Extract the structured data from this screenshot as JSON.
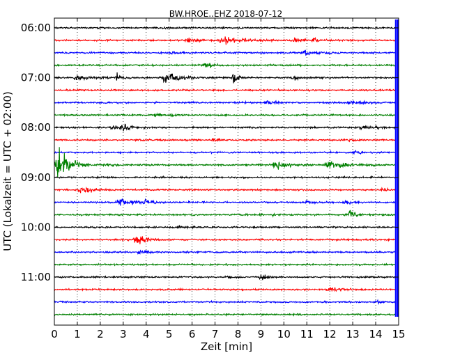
{
  "chart_data": {
    "type": "line",
    "title": "BW.HROE..EHZ 2018-07-12",
    "xlabel": "Zeit  [min]",
    "ylabel": "UTC (Lokalzeit = UTC + 02:00)",
    "xlim": [
      0,
      15
    ],
    "x_ticks": [
      "0",
      "1",
      "2",
      "3",
      "4",
      "5",
      "6",
      "7",
      "8",
      "9",
      "10",
      "11",
      "12",
      "13",
      "14",
      "15"
    ],
    "y_ticks": [
      "06:00",
      "07:00",
      "08:00",
      "09:00",
      "10:00",
      "11:00"
    ],
    "grid": "vertical dotted",
    "colors": [
      "#000000",
      "#ff0000",
      "#0000ff",
      "#008000"
    ],
    "traces": [
      {
        "time": "06:00",
        "color": "#000000"
      },
      {
        "time": "06:15",
        "color": "#ff0000"
      },
      {
        "time": "06:30",
        "color": "#0000ff"
      },
      {
        "time": "06:45",
        "color": "#008000"
      },
      {
        "time": "07:00",
        "color": "#000000"
      },
      {
        "time": "07:15",
        "color": "#ff0000"
      },
      {
        "time": "07:30",
        "color": "#0000ff"
      },
      {
        "time": "07:45",
        "color": "#008000"
      },
      {
        "time": "08:00",
        "color": "#000000"
      },
      {
        "time": "08:15",
        "color": "#ff0000"
      },
      {
        "time": "08:30",
        "color": "#0000ff"
      },
      {
        "time": "08:45",
        "color": "#008000"
      },
      {
        "time": "09:00",
        "color": "#000000"
      },
      {
        "time": "09:15",
        "color": "#ff0000"
      },
      {
        "time": "09:30",
        "color": "#0000ff"
      },
      {
        "time": "09:45",
        "color": "#008000"
      },
      {
        "time": "10:00",
        "color": "#000000"
      },
      {
        "time": "10:15",
        "color": "#ff0000"
      },
      {
        "time": "10:30",
        "color": "#0000ff"
      },
      {
        "time": "10:45",
        "color": "#008000"
      },
      {
        "time": "11:00",
        "color": "#000000"
      },
      {
        "time": "11:15",
        "color": "#ff0000"
      },
      {
        "time": "11:30",
        "color": "#0000ff"
      },
      {
        "time": "11:45",
        "color": "#008000"
      }
    ]
  }
}
